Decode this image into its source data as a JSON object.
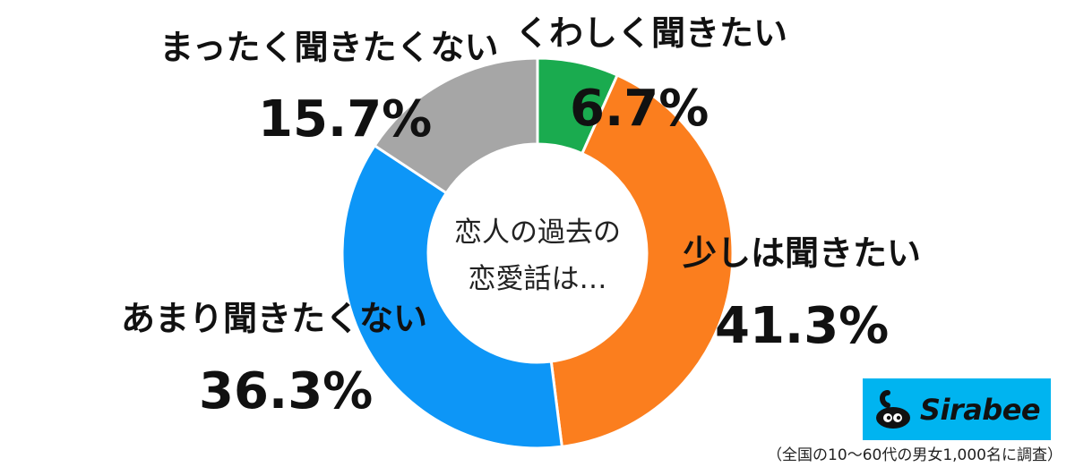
{
  "chart_data": {
    "type": "pie",
    "donut": true,
    "center_label": [
      "恋人の過去の",
      "恋愛話は…"
    ],
    "slices": [
      {
        "label": "くわしく聞きたい",
        "value": 6.7,
        "value_text": "6.7%",
        "color": "#1aab4f"
      },
      {
        "label": "少しは聞きたい",
        "value": 41.3,
        "value_text": "41.3%",
        "color": "#fb7e1e"
      },
      {
        "label": "あまり聞きたくない",
        "value": 36.3,
        "value_text": "36.3%",
        "color": "#0d96f7"
      },
      {
        "label": "まったく聞きたくない",
        "value": 15.7,
        "value_text": "15.7%",
        "color": "#a6a6a6"
      }
    ]
  },
  "logo": {
    "text": "Sirabee",
    "background": "#00b4f0"
  },
  "footnote": "（全国の10〜60代の男女1,000名に調査）"
}
